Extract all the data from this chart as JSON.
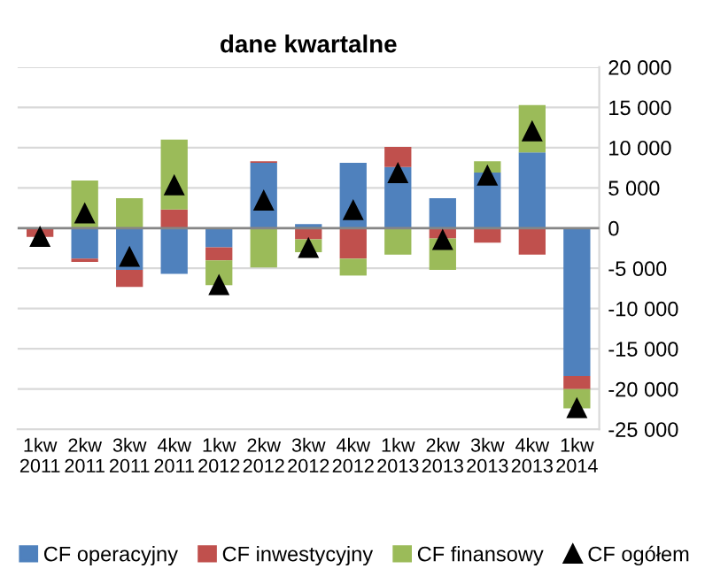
{
  "chart_data": {
    "type": "bar",
    "title": "dane kwartalne",
    "stacked": true,
    "categories": [
      "1kw\n2011",
      "2kw\n2011",
      "3kw\n2011",
      "4kw\n2011",
      "1kw\n2012",
      "2kw\n2012",
      "3kw\n2012",
      "4kw\n2012",
      "1kw\n2013",
      "2kw\n2013",
      "3kw\n2013",
      "4kw\n2013",
      "1kw\n2014"
    ],
    "series": [
      {
        "name": "CF operacyjny",
        "color": "#4f81bd",
        "values": [
          0,
          -3800,
          -5200,
          -5700,
          -2400,
          8100,
          500,
          8100,
          7600,
          3700,
          6900,
          9400,
          -18400
        ]
      },
      {
        "name": "CF inwestycyjny",
        "color": "#c0504d",
        "values": [
          -1100,
          -400,
          -2100,
          2300,
          -1600,
          200,
          -1400,
          -3800,
          2500,
          -1300,
          -1800,
          -3300,
          -1600
        ]
      },
      {
        "name": "CF finansowy",
        "color": "#9bbb59",
        "values": [
          0,
          5900,
          3700,
          8700,
          -3100,
          -4900,
          -1600,
          -2100,
          -3300,
          -3900,
          1400,
          5900,
          -2400
        ]
      },
      {
        "name": "CF ogółem",
        "type": "scatter",
        "marker": "triangle",
        "color": "#000000",
        "values": [
          -1100,
          1800,
          -3600,
          5300,
          -7100,
          3400,
          -2500,
          2200,
          6800,
          -1500,
          6500,
          12000,
          -22400
        ]
      }
    ],
    "ylim": [
      -25000,
      20000
    ],
    "yticks": [
      {
        "value": -25000,
        "label": "-25 000"
      },
      {
        "value": -20000,
        "label": "-20 000"
      },
      {
        "value": -15000,
        "label": "-15 000"
      },
      {
        "value": -10000,
        "label": "-10 000"
      },
      {
        "value": -5000,
        "label": "-5 000"
      },
      0,
      {
        "value": 5000,
        "label": "5 000"
      },
      {
        "value": 10000,
        "label": "10 000"
      },
      {
        "value": 15000,
        "label": "15 000"
      },
      {
        "value": 20000,
        "label": "20 000"
      }
    ],
    "grid": "y",
    "legend": "bottom"
  }
}
